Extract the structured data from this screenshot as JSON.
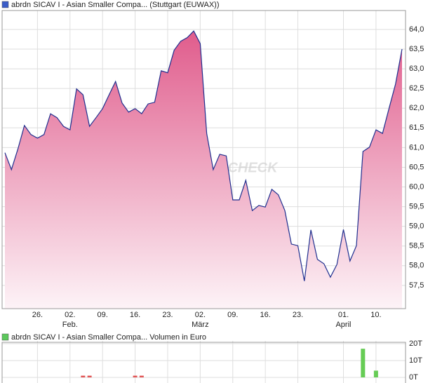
{
  "chart_data": [
    {
      "type": "area",
      "title": "abrdn SICAV I - Asian Smaller Compa... (Stuttgart (EUWAX))",
      "watermark": "CHECK",
      "categories": [
        null,
        null,
        null,
        null,
        null,
        "26.",
        null,
        null,
        null,
        null,
        "02.",
        null,
        null,
        null,
        null,
        "09.",
        null,
        null,
        null,
        null,
        "16.",
        null,
        null,
        null,
        null,
        "23.",
        null,
        null,
        null,
        null,
        "02.",
        null,
        null,
        null,
        null,
        "09.",
        null,
        null,
        null,
        null,
        "16.",
        null,
        null,
        null,
        null,
        "23.",
        null,
        null,
        null,
        null,
        null,
        null,
        "01.",
        null,
        null,
        null,
        null,
        "10.",
        null,
        null,
        null,
        null
      ],
      "month_labels": [
        null,
        null,
        null,
        null,
        null,
        null,
        null,
        null,
        null,
        null,
        "Feb.",
        null,
        null,
        null,
        null,
        null,
        null,
        null,
        null,
        null,
        null,
        null,
        null,
        null,
        null,
        null,
        null,
        null,
        null,
        null,
        "März",
        null,
        null,
        null,
        null,
        null,
        null,
        null,
        null,
        null,
        null,
        null,
        null,
        null,
        null,
        null,
        null,
        null,
        null,
        null,
        null,
        null,
        "April",
        null,
        null,
        null,
        null,
        null,
        null,
        null,
        null,
        null
      ],
      "values": [
        60.87,
        60.44,
        60.97,
        61.56,
        61.33,
        61.24,
        61.33,
        61.86,
        61.76,
        61.54,
        61.45,
        62.49,
        62.34,
        61.54,
        61.76,
        61.99,
        62.34,
        62.68,
        62.13,
        61.9,
        61.99,
        61.86,
        62.11,
        62.15,
        62.95,
        62.9,
        63.47,
        63.7,
        63.79,
        63.96,
        63.64,
        61.36,
        60.44,
        60.83,
        60.79,
        59.67,
        59.67,
        60.17,
        59.4,
        59.53,
        59.49,
        59.94,
        59.8,
        59.4,
        58.55,
        58.51,
        57.61,
        58.91,
        58.16,
        58.05,
        57.71,
        58.03,
        58.92,
        58.12,
        58.51,
        60.9,
        61.01,
        61.45,
        61.36,
        61.99,
        62.61,
        63.5
      ],
      "line_color": "#1f2f8f",
      "fill_top": "#e05c8c",
      "fill_bottom": "#fdf3f7",
      "legend_color": "#3a5cc8",
      "ylim": [
        56.91,
        64.48
      ],
      "yticks": [
        {
          "value": 57.5,
          "label": "57,5"
        },
        {
          "value": 58,
          "label": "58,0"
        },
        {
          "value": 58.5,
          "label": "58,5"
        },
        {
          "value": 59,
          "label": "59,0"
        },
        {
          "value": 59.5,
          "label": "59,5"
        },
        {
          "value": 60,
          "label": "60,0"
        },
        {
          "value": 60.5,
          "label": "60,5"
        },
        {
          "value": 61,
          "label": "61,0"
        },
        {
          "value": 61.5,
          "label": "61,5"
        },
        {
          "value": 62,
          "label": "62,0"
        },
        {
          "value": 62.5,
          "label": "62,5"
        },
        {
          "value": 63,
          "label": "63,0"
        },
        {
          "value": 63.5,
          "label": "63,5"
        },
        {
          "value": 64,
          "label": "64,0"
        }
      ],
      "grid": true
    },
    {
      "type": "bar",
      "title": "abrdn SICAV I - Asian Smaller Compa... Volumen in Euro",
      "legend_color": "#5cc85c",
      "values": [
        0,
        0,
        0,
        0,
        0,
        0,
        0,
        0,
        0,
        0,
        0,
        0,
        1000,
        1000,
        0,
        0,
        0,
        0,
        0,
        0,
        1000,
        1000,
        0,
        0,
        0,
        0,
        0,
        0,
        0,
        0,
        0,
        0,
        0,
        0,
        0,
        0,
        0,
        0,
        0,
        0,
        0,
        0,
        0,
        0,
        0,
        0,
        0,
        0,
        0,
        0,
        0,
        0,
        0,
        0,
        0,
        17000,
        0,
        4000,
        0,
        0,
        0,
        0
      ],
      "up_color": "#66cc55",
      "down_color": "#e05050",
      "bar_colors": [
        null,
        null,
        null,
        null,
        null,
        null,
        null,
        null,
        null,
        null,
        null,
        null,
        "#e05050",
        "#e05050",
        null,
        null,
        null,
        null,
        null,
        null,
        "#e05050",
        "#e05050",
        null,
        null,
        null,
        null,
        null,
        null,
        null,
        null,
        null,
        null,
        null,
        null,
        null,
        null,
        null,
        null,
        null,
        null,
        null,
        null,
        null,
        null,
        null,
        null,
        null,
        null,
        null,
        null,
        null,
        null,
        null,
        null,
        null,
        "#66cc55",
        null,
        "#66cc55",
        null,
        null,
        null,
        null
      ],
      "ylim": [
        0,
        20800
      ],
      "yticks": [
        {
          "value": 0,
          "label": "0T"
        },
        {
          "value": 10000,
          "label": "10T"
        },
        {
          "value": 20000,
          "label": "20T"
        }
      ],
      "grid": true
    }
  ]
}
